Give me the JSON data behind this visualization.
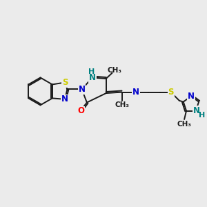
{
  "bg_color": "#ebebeb",
  "bond_color": "#1a1a1a",
  "N_color": "#0000cc",
  "S_color": "#cccc00",
  "O_color": "#ff0000",
  "NH_color": "#008080",
  "figsize": [
    3.0,
    3.0
  ],
  "dpi": 100,
  "xlim": [
    0,
    10
  ],
  "ylim": [
    0,
    10
  ],
  "lw": 1.4,
  "fs": 8.5
}
